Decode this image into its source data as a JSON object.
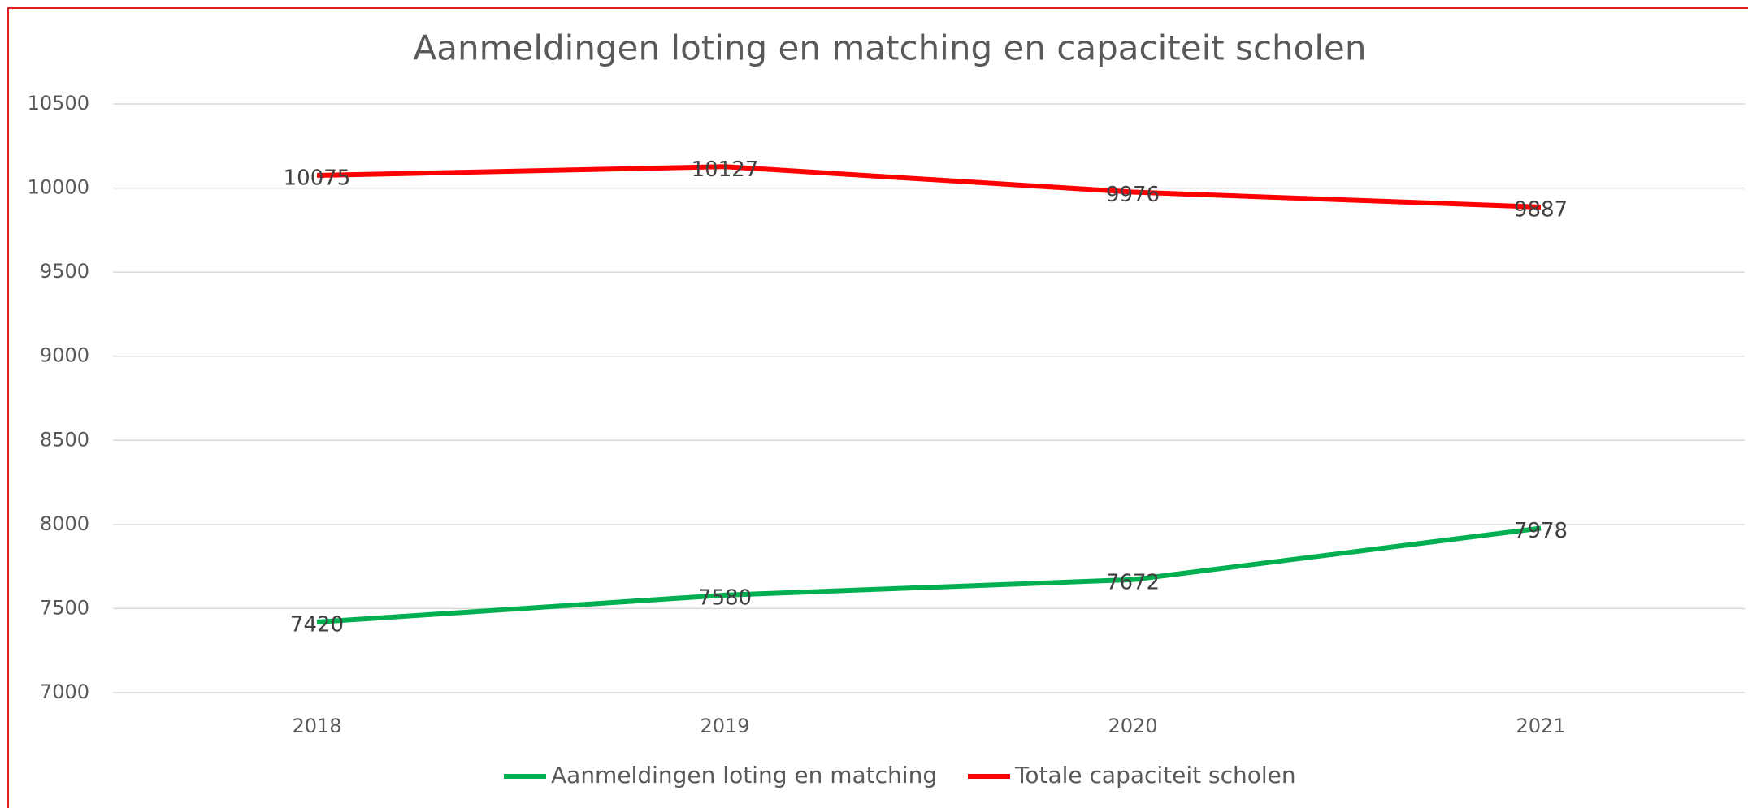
{
  "chart_data": {
    "type": "line",
    "title": "Aanmeldingen loting en matching en capaciteit scholen",
    "categories": [
      "2018",
      "2019",
      "2020",
      "2021"
    ],
    "series": [
      {
        "name": "Aanmeldingen loting en matching",
        "color": "#00b050",
        "values": [
          7420,
          7580,
          7672,
          7978
        ]
      },
      {
        "name": "Totale capaciteit scholen",
        "color": "#ff0000",
        "values": [
          10075,
          10127,
          9976,
          9887
        ]
      }
    ],
    "ylim": [
      7000,
      10500
    ],
    "yticks": [
      7000,
      7500,
      8000,
      8500,
      9000,
      9500,
      10000,
      10500
    ],
    "grid": true
  }
}
